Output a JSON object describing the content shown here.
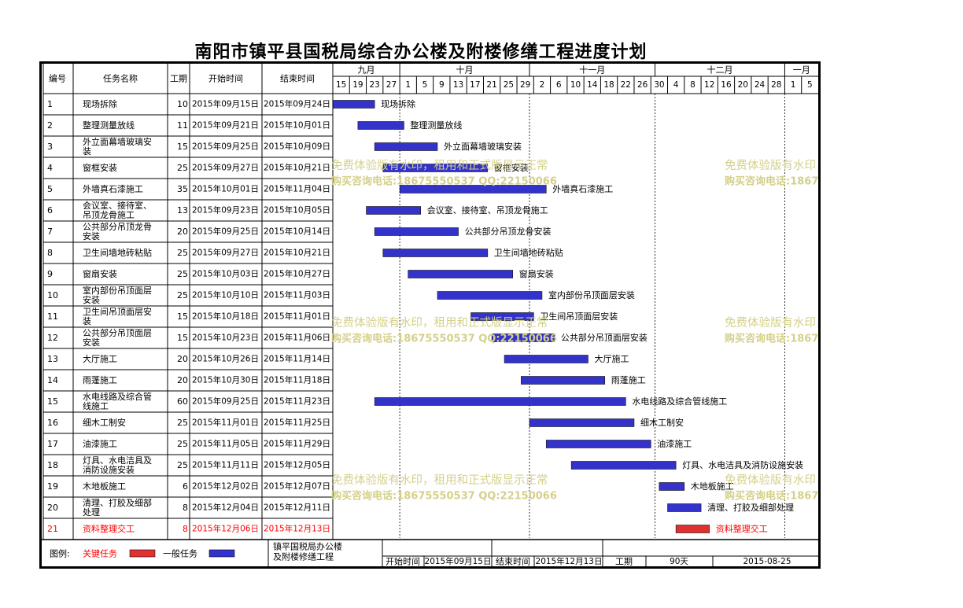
{
  "title": "南阳市镇平县国税局综合办公楼及附楼修缮工程进度计划",
  "headers": {
    "id": "编号",
    "name": "任务名称",
    "duration": "工期",
    "start": "开始时间",
    "end": "结束时间"
  },
  "months": [
    {
      "label": "九月",
      "start_day": 15,
      "end_day": 30
    },
    {
      "label": "十月",
      "start_day": 1,
      "end_day": 31
    },
    {
      "label": "十一月",
      "start_day": 1,
      "end_day": 30
    },
    {
      "label": "十二月",
      "start_day": 1,
      "end_day": 31
    },
    {
      "label": "一月",
      "start_day": 1,
      "end_day": 8
    }
  ],
  "day_ticks": [
    "15",
    "19",
    "23",
    "27",
    "1",
    "5",
    "9",
    "13",
    "17",
    "21",
    "25",
    "29",
    "2",
    "6",
    "10",
    "14",
    "18",
    "22",
    "26",
    "30",
    "4",
    "8",
    "12",
    "16",
    "20",
    "24",
    "28",
    "1",
    "5"
  ],
  "colors": {
    "general": "#3333cc",
    "critical": "#e03030",
    "critical_text": "#ff0000",
    "watermark": "#d4d08a"
  },
  "chart_data": {
    "type": "gantt",
    "x_start": "2015-09-15",
    "x_end": "2016-01-08",
    "tasks": [
      {
        "id": "1",
        "name": "现场拆除",
        "duration": 10,
        "start": "2015年09月15日",
        "end": "2015年09月24日",
        "start_date": "2015-09-15",
        "end_date": "2015-09-24",
        "critical": false
      },
      {
        "id": "2",
        "name": "整理测量放线",
        "duration": 11,
        "start": "2015年09月21日",
        "end": "2015年10月01日",
        "start_date": "2015-09-21",
        "end_date": "2015-10-01",
        "critical": false
      },
      {
        "id": "3",
        "name": "外立面幕墙玻璃安装",
        "duration": 15,
        "start": "2015年09月25日",
        "end": "2015年10月09日",
        "start_date": "2015-09-25",
        "end_date": "2015-10-09",
        "critical": false
      },
      {
        "id": "4",
        "name": "窗框安装",
        "duration": 25,
        "start": "2015年09月27日",
        "end": "2015年10月21日",
        "start_date": "2015-09-27",
        "end_date": "2015-10-21",
        "critical": false
      },
      {
        "id": "5",
        "name": "外墙真石漆施工",
        "duration": 35,
        "start": "2015年10月01日",
        "end": "2015年11月04日",
        "start_date": "2015-10-01",
        "end_date": "2015-11-04",
        "critical": false
      },
      {
        "id": "6",
        "name": "会议室、接待室、吊顶龙骨施工",
        "duration": 13,
        "start": "2015年09月23日",
        "end": "2015年10月05日",
        "start_date": "2015-09-23",
        "end_date": "2015-10-05",
        "critical": false
      },
      {
        "id": "7",
        "name": "公共部分吊顶龙骨安装",
        "duration": 20,
        "start": "2015年09月25日",
        "end": "2015年10月14日",
        "start_date": "2015-09-25",
        "end_date": "2015-10-14",
        "critical": false
      },
      {
        "id": "8",
        "name": "卫生间墙地砖粘贴",
        "duration": 25,
        "start": "2015年09月27日",
        "end": "2015年10月21日",
        "start_date": "2015-09-27",
        "end_date": "2015-10-21",
        "critical": false
      },
      {
        "id": "9",
        "name": "窗扇安装",
        "duration": 25,
        "start": "2015年10月03日",
        "end": "2015年10月27日",
        "start_date": "2015-10-03",
        "end_date": "2015-10-27",
        "critical": false
      },
      {
        "id": "10",
        "name": "室内部份吊顶面层安装",
        "duration": 25,
        "start": "2015年10月10日",
        "end": "2015年11月03日",
        "start_date": "2015-10-10",
        "end_date": "2015-11-03",
        "critical": false
      },
      {
        "id": "11",
        "name": "卫生间吊顶面层安装",
        "duration": 15,
        "start": "2015年10月18日",
        "end": "2015年11月01日",
        "start_date": "2015-10-18",
        "end_date": "2015-11-01",
        "critical": false
      },
      {
        "id": "12",
        "name": "公共部分吊顶面层安装",
        "duration": 15,
        "start": "2015年10月23日",
        "end": "2015年11月06日",
        "start_date": "2015-10-23",
        "end_date": "2015-11-06",
        "critical": false
      },
      {
        "id": "13",
        "name": "大厅施工",
        "duration": 20,
        "start": "2015年10月26日",
        "end": "2015年11月14日",
        "start_date": "2015-10-26",
        "end_date": "2015-11-14",
        "critical": false
      },
      {
        "id": "14",
        "name": "雨蓬施工",
        "duration": 20,
        "start": "2015年10月30日",
        "end": "2015年11月18日",
        "start_date": "2015-10-30",
        "end_date": "2015-11-18",
        "critical": false
      },
      {
        "id": "15",
        "name": "水电线路及综合管线施工",
        "duration": 60,
        "start": "2015年09月25日",
        "end": "2015年11月23日",
        "start_date": "2015-09-25",
        "end_date": "2015-11-23",
        "critical": false
      },
      {
        "id": "16",
        "name": "细木工制安",
        "duration": 25,
        "start": "2015年11月01日",
        "end": "2015年11月25日",
        "start_date": "2015-11-01",
        "end_date": "2015-11-25",
        "critical": false
      },
      {
        "id": "17",
        "name": "油漆施工",
        "duration": 25,
        "start": "2015年11月05日",
        "end": "2015年11月29日",
        "start_date": "2015-11-05",
        "end_date": "2015-11-29",
        "critical": false
      },
      {
        "id": "18",
        "name": "灯具、水电洁具及消防设施安装",
        "duration": 25,
        "start": "2015年11月11日",
        "end": "2015年12月05日",
        "start_date": "2015-11-11",
        "end_date": "2015-12-05",
        "critical": false
      },
      {
        "id": "19",
        "name": "木地板施工",
        "duration": 6,
        "start": "2015年12月02日",
        "end": "2015年12月07日",
        "start_date": "2015-12-02",
        "end_date": "2015-12-07",
        "critical": false
      },
      {
        "id": "20",
        "name": "清理、打胶及细部处理",
        "duration": 8,
        "start": "2015年12月04日",
        "end": "2015年12月11日",
        "start_date": "2015-12-04",
        "end_date": "2015-12-11",
        "critical": false
      },
      {
        "id": "21",
        "name": "资料整理交工",
        "duration": 8,
        "start": "2015年12月06日",
        "end": "2015年12月13日",
        "start_date": "2015-12-06",
        "end_date": "2015-12-13",
        "critical": true
      }
    ]
  },
  "legend": {
    "label": "图例:",
    "critical": "关键任务",
    "general": "一般任务"
  },
  "footer": {
    "project": "镇平国税局办公楼及附楼修缮工程",
    "start_label": "开始时间",
    "start_value": "2015年09月15日",
    "end_label": "结束时间",
    "end_value": "2015年12月13日",
    "duration_label": "工期",
    "duration_value": "90天",
    "date": "2015-08-25"
  },
  "watermark": {
    "line1": "免费体验版有水印，租用和正式版显示正常",
    "line2": "购买咨询电话:18675550537 QQ:22150066"
  }
}
